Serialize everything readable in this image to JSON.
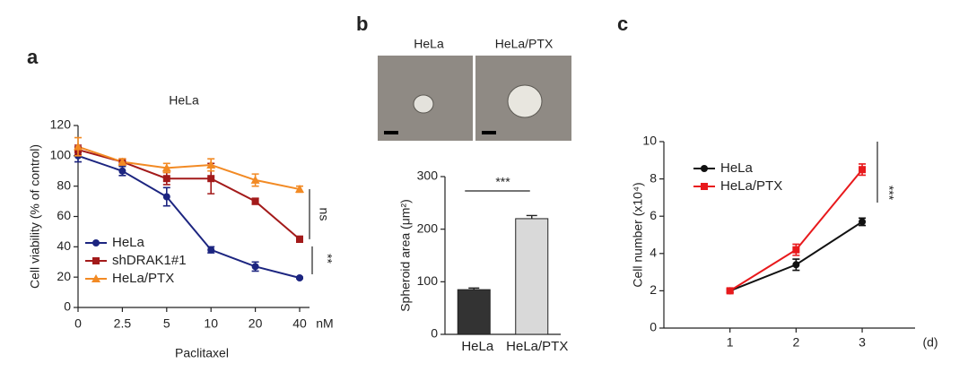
{
  "chart_data": [
    {
      "type": "line",
      "panel": "a",
      "title": "HeLa",
      "x_label": "Paclitaxel",
      "x_unit": "nM",
      "y_label": "Cell viability (% of control)",
      "categories": [
        "0",
        "2.5",
        "5",
        "10",
        "20",
        "40"
      ],
      "ylim": [
        0,
        120
      ],
      "yticks": [
        0,
        20,
        40,
        60,
        80,
        100,
        120
      ],
      "legend": "lower left",
      "series": [
        {
          "name": "HeLa",
          "color": "#1c2580",
          "marker": "circle",
          "values": [
            100,
            90,
            73,
            38,
            27,
            19.5
          ],
          "errors": [
            4,
            3,
            6,
            2,
            3,
            0.5
          ]
        },
        {
          "name": "shDRAK1#1",
          "color": "#a31a1a",
          "marker": "square",
          "values": [
            104,
            96,
            85,
            85,
            70,
            45
          ],
          "errors": [
            3,
            2,
            4,
            10,
            2,
            2
          ]
        },
        {
          "name": "HeLa/PTX",
          "color": "#f28a24",
          "marker": "triangle",
          "values": [
            106,
            96,
            92,
            94,
            84,
            78
          ],
          "errors": [
            6,
            2,
            3,
            4,
            4,
            2
          ]
        }
      ],
      "annotations": [
        "ns",
        "**"
      ]
    },
    {
      "type": "bar",
      "panel": "b",
      "image_labels": [
        "HeLa",
        "HeLa/PTX"
      ],
      "y_label": "Spheroid area (μm²)",
      "categories": [
        "HeLa",
        "HeLa/PTX"
      ],
      "values": [
        85,
        220
      ],
      "errors": [
        3,
        6
      ],
      "colors": [
        "#333333",
        "#d9d9d9"
      ],
      "ylim": [
        0,
        300
      ],
      "yticks": [
        0,
        100,
        200,
        300
      ],
      "annotations": [
        "***"
      ]
    },
    {
      "type": "line",
      "panel": "c",
      "x_unit": "(d)",
      "y_label": "Cell number (x10⁴)",
      "x": [
        1,
        2,
        3
      ],
      "xlim": [
        0,
        3.8
      ],
      "xticks": [
        1,
        2,
        3
      ],
      "ylim": [
        0,
        10
      ],
      "yticks": [
        0,
        2,
        4,
        6,
        8,
        10
      ],
      "legend": "upper left",
      "series": [
        {
          "name": "HeLa",
          "color": "#111111",
          "marker": "circle",
          "values": [
            2,
            3.4,
            5.7
          ],
          "errors": [
            0.1,
            0.3,
            0.2
          ]
        },
        {
          "name": "HeLa/PTX",
          "color": "#e8191c",
          "marker": "square",
          "values": [
            2,
            4.2,
            8.5
          ],
          "errors": [
            0.1,
            0.3,
            0.3
          ]
        }
      ],
      "annotations": [
        "***"
      ]
    }
  ]
}
